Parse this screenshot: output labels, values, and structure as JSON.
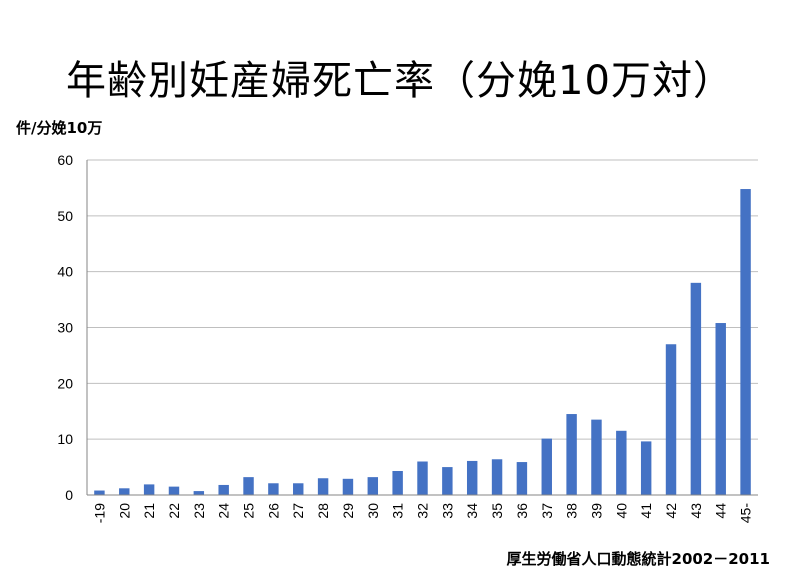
{
  "chart_data": {
    "type": "bar",
    "title": "年齢別妊産婦死亡率（分娩10万対）",
    "ylabel": "件/分娩10万",
    "xlabel": "",
    "source": "厚生労働省人口動態統計2002－2011",
    "ylim": [
      0,
      60
    ],
    "yticks": [
      0,
      10,
      20,
      30,
      40,
      50,
      60
    ],
    "grid": true,
    "categories": [
      "-19",
      "20",
      "21",
      "22",
      "23",
      "24",
      "25",
      "26",
      "27",
      "28",
      "29",
      "30",
      "31",
      "32",
      "33",
      "34",
      "35",
      "36",
      "37",
      "38",
      "39",
      "40",
      "41",
      "42",
      "43",
      "44",
      "45-"
    ],
    "values": [
      0.8,
      1.2,
      1.9,
      1.5,
      0.7,
      1.8,
      3.2,
      2.1,
      2.1,
      3.0,
      2.9,
      3.2,
      4.3,
      6.0,
      5.0,
      6.1,
      6.4,
      5.9,
      10.1,
      14.5,
      13.5,
      11.5,
      9.6,
      27.0,
      38.0,
      30.8,
      54.8
    ],
    "colors": {
      "bar": "#4472C4",
      "grid": "#BFBFBF",
      "axis": "#868686"
    }
  }
}
